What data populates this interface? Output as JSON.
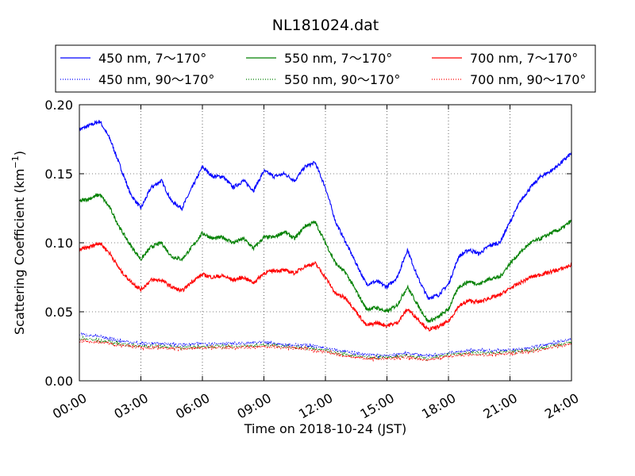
{
  "chart_data": {
    "type": "line",
    "title": "NL181024.dat",
    "xlabel": "Time on 2018-10-24 (JST)",
    "ylabel_main": "Scattering Coefficient (km",
    "ylabel_sup": "−1",
    "ylabel_close": ")",
    "xlim_hours": [
      0,
      24
    ],
    "ylim": [
      0,
      0.2
    ],
    "xticks": [
      {
        "hour": 0,
        "label": "00:00"
      },
      {
        "hour": 3,
        "label": "03:00"
      },
      {
        "hour": 6,
        "label": "06:00"
      },
      {
        "hour": 9,
        "label": "09:00"
      },
      {
        "hour": 12,
        "label": "12:00"
      },
      {
        "hour": 15,
        "label": "15:00"
      },
      {
        "hour": 18,
        "label": "18:00"
      },
      {
        "hour": 21,
        "label": "21:00"
      },
      {
        "hour": 24,
        "label": "24:00"
      }
    ],
    "yticks": [
      {
        "value": 0.0,
        "label": "0.00"
      },
      {
        "value": 0.05,
        "label": "0.05"
      },
      {
        "value": 0.1,
        "label": "0.10"
      },
      {
        "value": 0.15,
        "label": "0.15"
      },
      {
        "value": 0.2,
        "label": "0.20"
      }
    ],
    "grid": true,
    "legend_position": "top",
    "series": [
      {
        "name": "450 nm, 7～170°",
        "color": "#0000ff",
        "style": "solid",
        "x": [
          0,
          0.5,
          1,
          1.5,
          2,
          2.5,
          3,
          3.5,
          4,
          4.5,
          5,
          5.5,
          6,
          6.5,
          7,
          7.5,
          8,
          8.5,
          9,
          9.5,
          10,
          10.5,
          11,
          11.5,
          12,
          12.5,
          13,
          13.5,
          14,
          14.5,
          15,
          15.5,
          16,
          16.5,
          17,
          17.5,
          18,
          18.5,
          19,
          19.5,
          20,
          20.5,
          21,
          21.5,
          22,
          22.5,
          23,
          23.5,
          24
        ],
        "y": [
          0.182,
          0.185,
          0.188,
          0.175,
          0.155,
          0.135,
          0.125,
          0.14,
          0.145,
          0.13,
          0.125,
          0.14,
          0.155,
          0.148,
          0.148,
          0.14,
          0.145,
          0.138,
          0.152,
          0.148,
          0.15,
          0.145,
          0.155,
          0.158,
          0.14,
          0.115,
          0.1,
          0.085,
          0.07,
          0.072,
          0.068,
          0.075,
          0.095,
          0.075,
          0.06,
          0.062,
          0.07,
          0.09,
          0.095,
          0.092,
          0.098,
          0.1,
          0.115,
          0.13,
          0.14,
          0.148,
          0.152,
          0.158,
          0.165
        ]
      },
      {
        "name": "550 nm, 7～170°",
        "color": "#008000",
        "style": "solid",
        "x": [
          0,
          0.5,
          1,
          1.5,
          2,
          2.5,
          3,
          3.5,
          4,
          4.5,
          5,
          5.5,
          6,
          6.5,
          7,
          7.5,
          8,
          8.5,
          9,
          9.5,
          10,
          10.5,
          11,
          11.5,
          12,
          12.5,
          13,
          13.5,
          14,
          14.5,
          15,
          15.5,
          16,
          16.5,
          17,
          17.5,
          18,
          18.5,
          19,
          19.5,
          20,
          20.5,
          21,
          21.5,
          22,
          22.5,
          23,
          23.5,
          24
        ],
        "y": [
          0.13,
          0.132,
          0.135,
          0.125,
          0.11,
          0.098,
          0.088,
          0.097,
          0.1,
          0.09,
          0.088,
          0.097,
          0.107,
          0.103,
          0.104,
          0.1,
          0.103,
          0.096,
          0.104,
          0.104,
          0.108,
          0.103,
          0.112,
          0.115,
          0.1,
          0.085,
          0.078,
          0.065,
          0.052,
          0.053,
          0.05,
          0.055,
          0.068,
          0.055,
          0.043,
          0.046,
          0.052,
          0.068,
          0.072,
          0.07,
          0.074,
          0.075,
          0.085,
          0.093,
          0.1,
          0.103,
          0.107,
          0.11,
          0.116
        ]
      },
      {
        "name": "700 nm, 7～170°",
        "color": "#ff0000",
        "style": "solid",
        "x": [
          0,
          0.5,
          1,
          1.5,
          2,
          2.5,
          3,
          3.5,
          4,
          4.5,
          5,
          5.5,
          6,
          6.5,
          7,
          7.5,
          8,
          8.5,
          9,
          9.5,
          10,
          10.5,
          11,
          11.5,
          12,
          12.5,
          13,
          13.5,
          14,
          14.5,
          15,
          15.5,
          16,
          16.5,
          17,
          17.5,
          18,
          18.5,
          19,
          19.5,
          20,
          20.5,
          21,
          21.5,
          22,
          22.5,
          23,
          23.5,
          24
        ],
        "y": [
          0.095,
          0.097,
          0.1,
          0.092,
          0.08,
          0.072,
          0.066,
          0.073,
          0.073,
          0.068,
          0.065,
          0.072,
          0.077,
          0.075,
          0.076,
          0.073,
          0.075,
          0.071,
          0.078,
          0.08,
          0.08,
          0.078,
          0.083,
          0.085,
          0.075,
          0.063,
          0.06,
          0.05,
          0.04,
          0.042,
          0.04,
          0.042,
          0.052,
          0.045,
          0.037,
          0.039,
          0.043,
          0.054,
          0.058,
          0.057,
          0.06,
          0.062,
          0.067,
          0.071,
          0.075,
          0.077,
          0.079,
          0.081,
          0.084
        ]
      },
      {
        "name": "450 nm, 90～170°",
        "color": "#0000ff",
        "style": "dotted",
        "x": [
          0,
          1,
          2,
          3,
          4,
          5,
          6,
          7,
          8,
          9,
          10,
          11,
          12,
          13,
          14,
          15,
          16,
          17,
          18,
          19,
          20,
          21,
          22,
          23,
          24
        ],
        "y": [
          0.034,
          0.032,
          0.029,
          0.027,
          0.027,
          0.026,
          0.027,
          0.027,
          0.027,
          0.028,
          0.026,
          0.026,
          0.024,
          0.021,
          0.019,
          0.018,
          0.02,
          0.018,
          0.02,
          0.022,
          0.022,
          0.022,
          0.024,
          0.027,
          0.03
        ]
      },
      {
        "name": "550 nm, 90～170°",
        "color": "#008000",
        "style": "dotted",
        "x": [
          0,
          1,
          2,
          3,
          4,
          5,
          6,
          7,
          8,
          9,
          10,
          11,
          12,
          13,
          14,
          15,
          16,
          17,
          18,
          19,
          20,
          21,
          22,
          23,
          24
        ],
        "y": [
          0.031,
          0.029,
          0.027,
          0.025,
          0.025,
          0.024,
          0.025,
          0.025,
          0.025,
          0.026,
          0.025,
          0.024,
          0.022,
          0.019,
          0.017,
          0.017,
          0.018,
          0.016,
          0.019,
          0.02,
          0.02,
          0.021,
          0.022,
          0.025,
          0.028
        ]
      },
      {
        "name": "700 nm, 90～170°",
        "color": "#ff0000",
        "style": "dotted",
        "x": [
          0,
          1,
          2,
          3,
          4,
          5,
          6,
          7,
          8,
          9,
          10,
          11,
          12,
          13,
          14,
          15,
          16,
          17,
          18,
          19,
          20,
          21,
          22,
          23,
          24
        ],
        "y": [
          0.029,
          0.028,
          0.026,
          0.024,
          0.024,
          0.023,
          0.024,
          0.024,
          0.024,
          0.025,
          0.024,
          0.023,
          0.021,
          0.018,
          0.016,
          0.016,
          0.017,
          0.015,
          0.018,
          0.019,
          0.019,
          0.02,
          0.021,
          0.024,
          0.027
        ]
      }
    ]
  }
}
